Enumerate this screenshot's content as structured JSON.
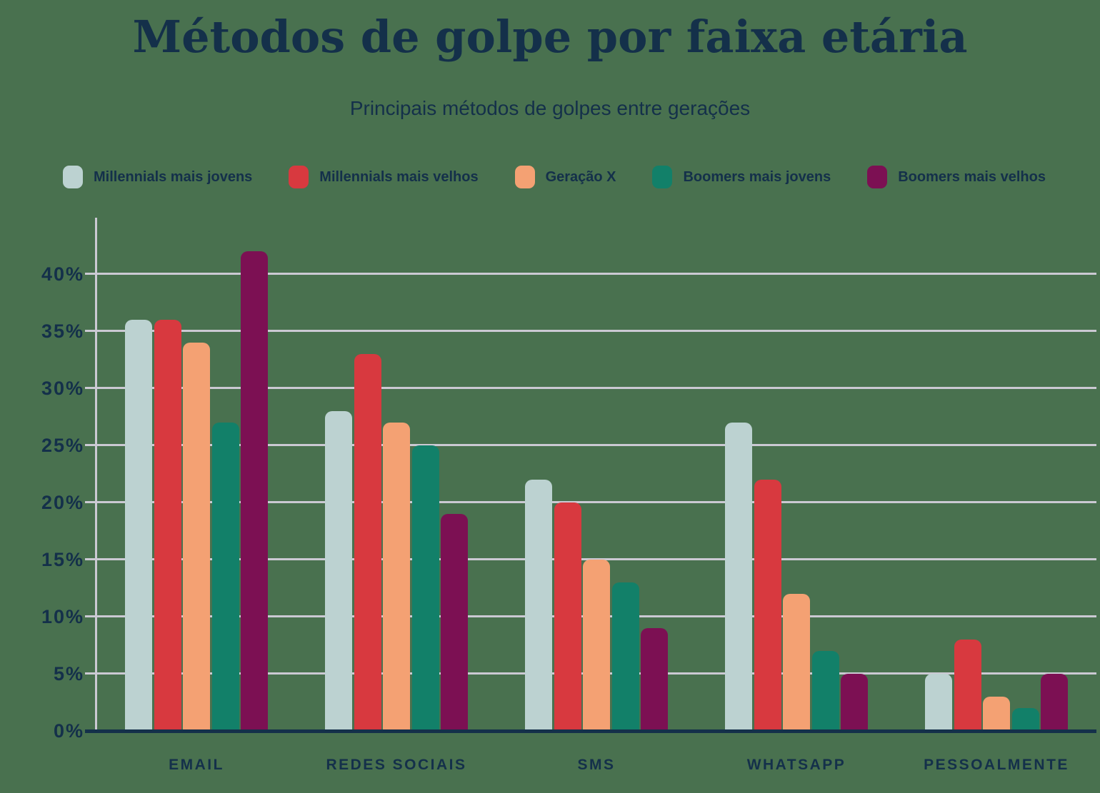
{
  "header": {
    "title": "Métodos de golpe por faixa etária",
    "subtitle": "Principais métodos de golpes entre gerações"
  },
  "colors": {
    "background": "#49714F",
    "text": "#14304A",
    "gridline": "#CBC9D3"
  },
  "chart_data": {
    "type": "bar",
    "title": "Métodos de golpe por faixa etária",
    "subtitle": "Principais métodos de golpes entre gerações",
    "categories": [
      "EMAIL",
      "REDES SOCIAIS",
      "SMS",
      "WHATSAPP",
      "PESSOALMENTE"
    ],
    "series": [
      {
        "name": "Millennials mais jovens",
        "color": "#BCD2D1",
        "values": [
          36,
          28,
          22,
          27,
          5
        ]
      },
      {
        "name": "Millennials mais velhos",
        "color": "#D8393F",
        "values": [
          36,
          33,
          20,
          22,
          8
        ]
      },
      {
        "name": "Geração X",
        "color": "#F4A173",
        "values": [
          34,
          27,
          15,
          12,
          3
        ]
      },
      {
        "name": "Boomers mais jovens",
        "color": "#128069",
        "values": [
          27,
          25,
          13,
          7,
          2
        ]
      },
      {
        "name": "Boomers mais velhos",
        "color": "#7C1053",
        "values": [
          42,
          19,
          9,
          5,
          5
        ]
      }
    ],
    "xlabel": "",
    "ylabel": "",
    "y_ticks": [
      "0%",
      "5%",
      "10%",
      "15%",
      "20%",
      "25%",
      "30%",
      "35%",
      "40%"
    ],
    "y_tick_values": [
      0,
      5,
      10,
      15,
      20,
      25,
      30,
      35,
      40
    ],
    "ylim": [
      0,
      45
    ],
    "unit": "%",
    "grid": true,
    "legend_position": "top"
  }
}
